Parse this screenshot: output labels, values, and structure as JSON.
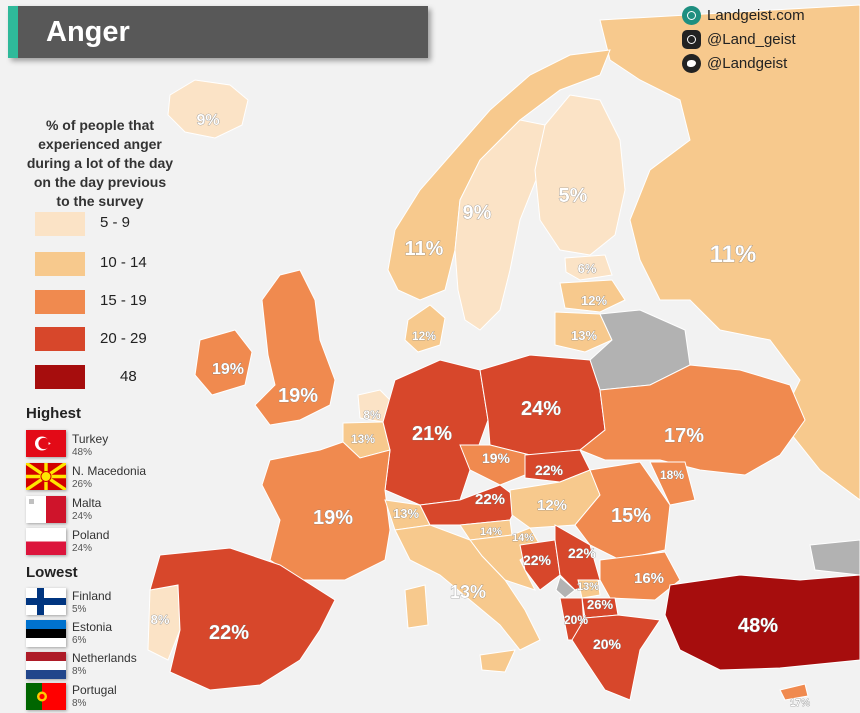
{
  "header": {
    "title": "Anger",
    "website": "Landgeist.com",
    "instagram": "@Land_geist",
    "twitter": "@Landgeist",
    "icons": [
      "globe-icon",
      "instagram-icon",
      "twitter-icon"
    ]
  },
  "legend": {
    "title_lines": [
      "% of people that",
      "experienced anger",
      "during a lot of the day",
      "on the day previous",
      "to the survey"
    ],
    "bins": [
      {
        "label": "5  -  9",
        "color": "#fbe3c6"
      },
      {
        "label": "10 - 14",
        "color": "#f7c98d"
      },
      {
        "label": "15 - 19",
        "color": "#f08a4f"
      },
      {
        "label": "20 - 29",
        "color": "#d7472b"
      },
      {
        "label": "48",
        "color": "#a60d0d"
      }
    ],
    "no_data_color": "#b2b2b2"
  },
  "highest": {
    "title": "Highest",
    "items": [
      {
        "name": "Turkey",
        "value": "48%"
      },
      {
        "name": "N. Macedonia",
        "value": "26%"
      },
      {
        "name": "Malta",
        "value": "24%"
      },
      {
        "name": "Poland",
        "value": "24%"
      }
    ]
  },
  "lowest": {
    "title": "Lowest",
    "items": [
      {
        "name": "Finland",
        "value": "5%"
      },
      {
        "name": "Estonia",
        "value": "6%"
      },
      {
        "name": "Netherlands",
        "value": "8%"
      },
      {
        "name": "Portugal",
        "value": "8%"
      }
    ]
  },
  "regions": [
    {
      "country": "Iceland",
      "value": 9,
      "label": "9%"
    },
    {
      "country": "Norway",
      "value": 11,
      "label": "11%"
    },
    {
      "country": "Sweden",
      "value": 9,
      "label": "9%"
    },
    {
      "country": "Finland",
      "value": 5,
      "label": "5%"
    },
    {
      "country": "Russia",
      "value": 11,
      "label": "11%"
    },
    {
      "country": "Estonia",
      "value": 6,
      "label": "6%"
    },
    {
      "country": "Latvia",
      "value": 12,
      "label": "12%"
    },
    {
      "country": "Lithuania",
      "value": 13,
      "label": "13%"
    },
    {
      "country": "Denmark",
      "value": 12,
      "label": "12%"
    },
    {
      "country": "Ireland",
      "value": 19,
      "label": "19%"
    },
    {
      "country": "United Kingdom",
      "value": 19,
      "label": "19%"
    },
    {
      "country": "Netherlands",
      "value": 8,
      "label": "8%"
    },
    {
      "country": "Belgium",
      "value": 13,
      "label": "13%"
    },
    {
      "country": "Germany",
      "value": 21,
      "label": "21%"
    },
    {
      "country": "Poland",
      "value": 24,
      "label": "24%"
    },
    {
      "country": "Ukraine",
      "value": 17,
      "label": "17%"
    },
    {
      "country": "Czechia",
      "value": 19,
      "label": "19%"
    },
    {
      "country": "Slovakia",
      "value": 22,
      "label": "22%"
    },
    {
      "country": "Moldova",
      "value": 18,
      "label": "18%"
    },
    {
      "country": "France",
      "value": 19,
      "label": "19%"
    },
    {
      "country": "Switzerland",
      "value": 13,
      "label": "13%"
    },
    {
      "country": "Austria",
      "value": 22,
      "label": "22%"
    },
    {
      "country": "Hungary",
      "value": 12,
      "label": "12%"
    },
    {
      "country": "Romania",
      "value": 15,
      "label": "15%"
    },
    {
      "country": "Slovenia",
      "value": 14,
      "label": "14%"
    },
    {
      "country": "Croatia",
      "value": 14,
      "label": "14%"
    },
    {
      "country": "Bosnia and Herzegovina",
      "value": 22,
      "label": "22%"
    },
    {
      "country": "Serbia",
      "value": 22,
      "label": "22%"
    },
    {
      "country": "Bulgaria",
      "value": 16,
      "label": "16%"
    },
    {
      "country": "Montenegro",
      "value": 13,
      "label": "13%"
    },
    {
      "country": "North Macedonia",
      "value": 26,
      "label": "26%"
    },
    {
      "country": "Albania",
      "value": 20,
      "label": "20%"
    },
    {
      "country": "Greece",
      "value": 20,
      "label": "20%"
    },
    {
      "country": "Italy",
      "value": 13,
      "label": "13%"
    },
    {
      "country": "Portugal",
      "value": 8,
      "label": "8%"
    },
    {
      "country": "Spain",
      "value": 22,
      "label": "22%"
    },
    {
      "country": "Turkey",
      "value": 48,
      "label": "48%"
    },
    {
      "country": "Cyprus",
      "value": 17,
      "label": "17%"
    }
  ]
}
